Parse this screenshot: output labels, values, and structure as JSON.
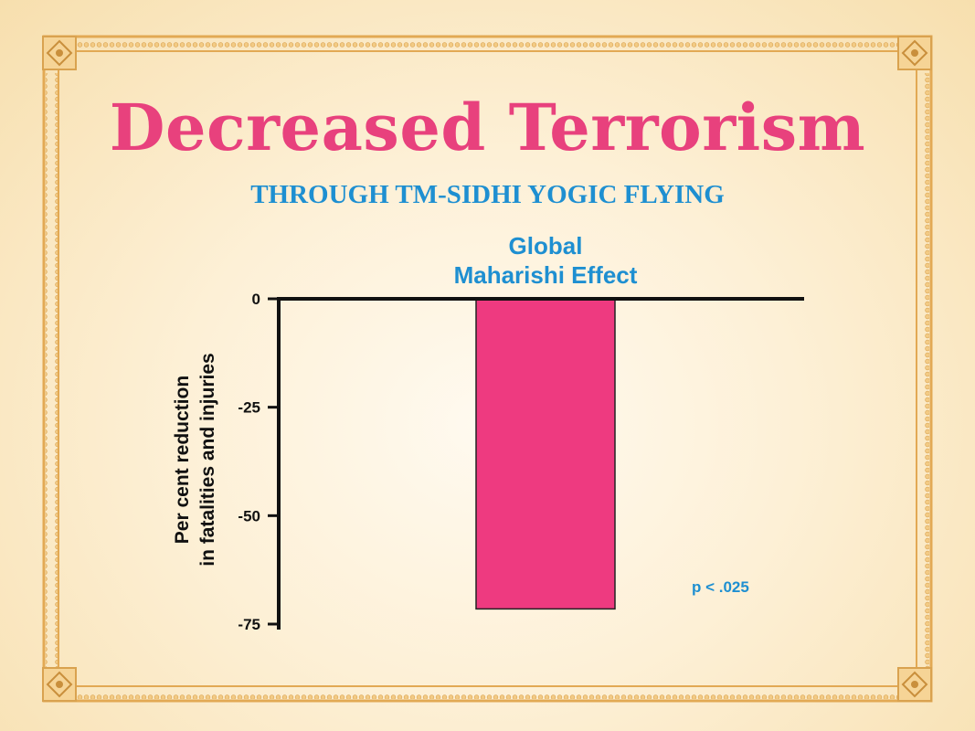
{
  "colors": {
    "title": "#e8417d",
    "subtitle": "#1e8fd1",
    "bar": "#ee3a80",
    "border": "#e7b15a"
  },
  "chart_data": {
    "type": "bar",
    "title": "Decreased Terrorism",
    "subtitle": "THROUGH TM-SIDHI YOGIC FLYING",
    "categories": [
      "Global|Maharishi Effect"
    ],
    "values": [
      -71.5
    ],
    "ylabel": [
      "Per cent reduction",
      "in fatalities and injuries"
    ],
    "xlabel": "",
    "ylim": [
      -75,
      0
    ],
    "yticks": [
      0,
      -25,
      -50,
      -75
    ],
    "annotation": "p < .025",
    "grid": false
  }
}
